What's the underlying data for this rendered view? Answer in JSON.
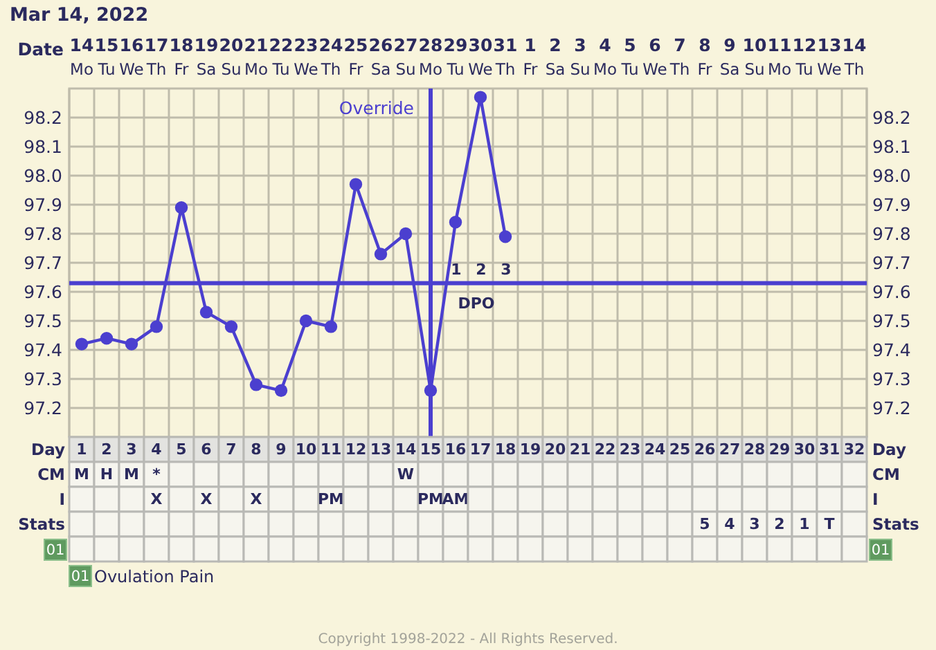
{
  "chart_data": [
    {
      "type": "line",
      "title": "Mar 14, 2022",
      "xlabel": "Date",
      "categories": [
        "14\nMo",
        "15\nTu",
        "16\nWe",
        "17\nTh",
        "18\nFr",
        "19\nSa",
        "20\nSu",
        "21\nMo",
        "22\nTu",
        "23\nWe",
        "24\nTh",
        "25\nFr",
        "26\nSa",
        "27\nSu",
        "28\nMo",
        "29\nTu",
        "30\nWe",
        "31\nTh",
        "1\nFr",
        "2\nSa",
        "3\nSu",
        "4\nMo",
        "5\nTu",
        "6\nWe",
        "7\nTh",
        "8\nFr",
        "9\nSa",
        "10\nSu",
        "11\nMo",
        "12\nTu",
        "13\nWe",
        "14\nTh"
      ],
      "series": [
        {
          "color": "#4b3fcf",
          "values": [
            97.42,
            97.44,
            97.42,
            97.48,
            97.89,
            97.53,
            97.48,
            97.28,
            97.26,
            97.5,
            97.48,
            97.97,
            97.73,
            97.8,
            97.26,
            97.84,
            98.27,
            97.79,
            null,
            null,
            null,
            null,
            null,
            null,
            null,
            null,
            null,
            null,
            null,
            null,
            null,
            null
          ]
        }
      ],
      "marker": "circle",
      "ylim": [
        97.1,
        98.3
      ],
      "yticks": [
        97.2,
        97.3,
        97.4,
        97.5,
        97.6,
        97.7,
        97.8,
        97.9,
        {
          "value": 98.0,
          "label": "98.0"
        },
        98.1,
        98.2
      ],
      "y2lim": [
        97.1,
        98.3
      ],
      "y2ticks": [
        97.2,
        97.3,
        97.4,
        97.5,
        97.6,
        97.7,
        97.8,
        97.9,
        {
          "value": 98.0,
          "label": "98.0"
        },
        98.1,
        98.2
      ],
      "grid": true,
      "ref_lines": [
        {
          "axis": "y",
          "value": 97.63,
          "color": "#4b3fcf"
        },
        {
          "axis": "x",
          "value": "28\nMo",
          "label": "Override",
          "color": "#4b3fcf"
        }
      ],
      "annotations": [
        "1 2 3",
        "DPO"
      ]
    },
    {
      "type": "heatmap",
      "xlabel": "Day",
      "categories": [
        "1",
        "2",
        "3",
        "4",
        "5",
        "6",
        "7",
        "8",
        "9",
        "10",
        "11",
        "12",
        "13",
        "14",
        "15",
        "16",
        "17",
        "18",
        "19",
        "20",
        "21",
        "22",
        "23",
        "24",
        "25",
        "26",
        "27",
        "28",
        "29",
        "30",
        "31",
        "32"
      ],
      "y_categories": [
        "CM",
        "I",
        "Stats",
        "01"
      ],
      "y2_categories": [
        "CM",
        "I",
        "Stats",
        "01"
      ],
      "cells": [
        [
          null,
          null,
          null,
          null,
          null,
          null,
          null,
          null,
          null,
          null,
          null,
          null,
          null,
          null,
          null,
          null,
          null,
          null,
          null,
          null,
          null,
          null,
          null,
          null,
          null,
          null,
          null,
          null,
          null,
          null,
          null,
          null
        ],
        [
          null,
          null,
          null,
          null,
          null,
          null,
          null,
          null,
          null,
          null,
          null,
          null,
          null,
          null,
          null,
          null,
          null,
          null,
          null,
          null,
          null,
          null,
          null,
          null,
          null,
          null,
          null,
          null,
          null,
          null,
          null,
          null
        ],
        [
          null,
          null,
          null,
          null,
          null,
          null,
          null,
          null,
          null,
          null,
          null,
          null,
          null,
          null,
          null,
          null,
          null,
          null,
          null,
          null,
          null,
          null,
          null,
          null,
          null,
          null,
          null,
          null,
          null,
          null,
          null,
          null
        ],
        [
          null,
          null,
          null,
          null,
          null,
          null,
          null,
          null,
          null,
          null,
          null,
          null,
          null,
          null,
          null,
          null,
          null,
          null,
          null,
          null,
          null,
          null,
          null,
          null,
          null,
          null,
          null,
          null,
          null,
          null,
          null,
          null
        ]
      ],
      "cell_labels": [
        [
          "M",
          "H",
          "M",
          "*",
          null,
          null,
          null,
          null,
          null,
          null,
          null,
          null,
          null,
          "W",
          null,
          null,
          null,
          null,
          null,
          null,
          null,
          null,
          null,
          null,
          null,
          null,
          null,
          null,
          null,
          null,
          null,
          null
        ],
        [
          null,
          null,
          null,
          "X",
          null,
          "X",
          null,
          "X",
          null,
          null,
          "PM",
          null,
          null,
          null,
          "PM",
          "AM",
          null,
          null,
          null,
          null,
          null,
          null,
          null,
          null,
          null,
          null,
          null,
          null,
          null,
          null,
          null,
          null
        ],
        [
          null,
          null,
          null,
          null,
          null,
          null,
          null,
          null,
          null,
          null,
          null,
          null,
          null,
          null,
          null,
          null,
          null,
          null,
          null,
          null,
          null,
          null,
          null,
          null,
          null,
          "5",
          "4",
          "3",
          "2",
          "1",
          "T",
          null
        ],
        [
          null,
          null,
          null,
          null,
          null,
          null,
          null,
          null,
          null,
          null,
          null,
          null,
          null,
          null,
          null,
          null,
          null,
          null,
          null,
          null,
          null,
          null,
          null,
          null,
          null,
          null,
          null,
          null,
          null,
          null,
          null,
          null
        ]
      ],
      "annotations": [
        "Ovulation Pain",
        "Copyright 1998-2022 - All Rights Reserved."
      ]
    }
  ]
}
